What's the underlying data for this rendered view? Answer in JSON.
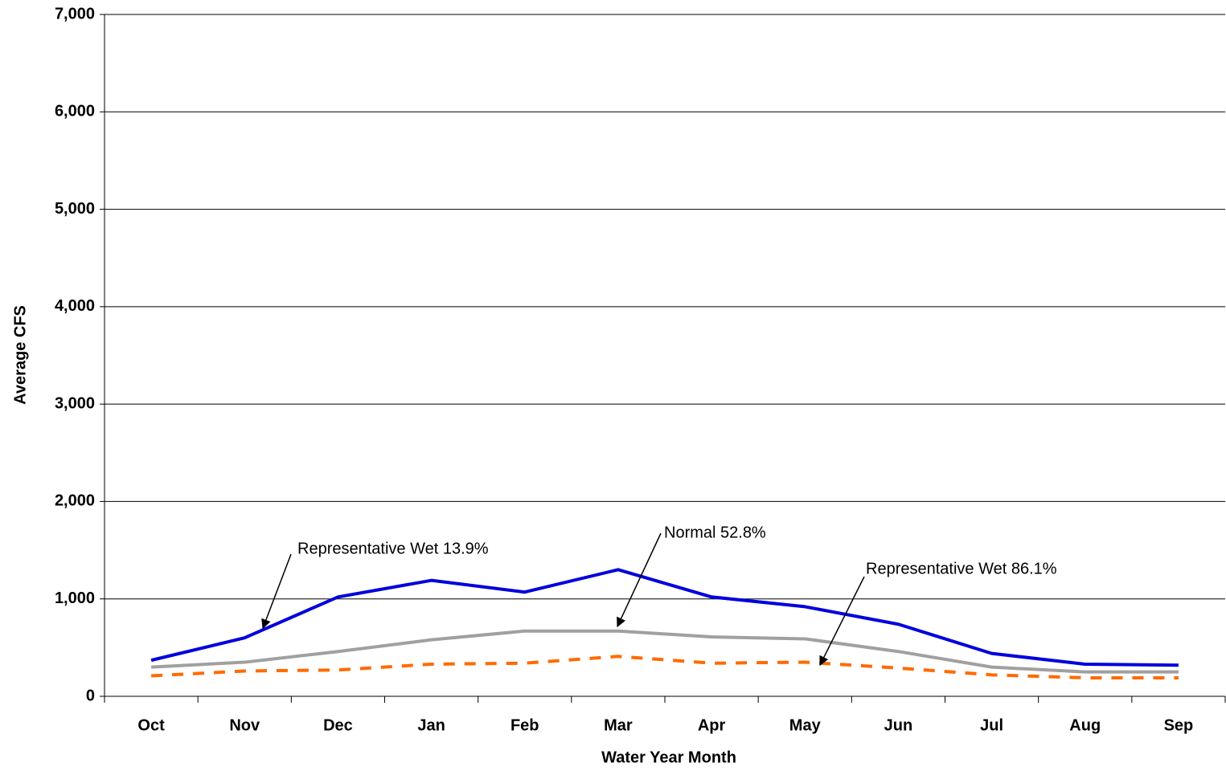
{
  "chart_data": {
    "type": "line",
    "x_label": "Water Year Month",
    "y_label": "Average CFS",
    "categories": [
      "Oct",
      "Nov",
      "Dec",
      "Jan",
      "Feb",
      "Mar",
      "Apr",
      "May",
      "Jun",
      "Jul",
      "Aug",
      "Sep"
    ],
    "series": [
      {
        "name": "Representative Wet 13.9%",
        "color": "#0000dd",
        "dash": false,
        "values": [
          370,
          600,
          1020,
          1190,
          1070,
          1300,
          1020,
          920,
          740,
          440,
          330,
          320
        ]
      },
      {
        "name": "Normal 52.8%",
        "color": "#a0a0a0",
        "dash": false,
        "values": [
          300,
          350,
          460,
          580,
          670,
          670,
          610,
          590,
          460,
          300,
          250,
          250
        ]
      },
      {
        "name": "Representative Wet 86.1%",
        "color": "#ff6a00",
        "dash": true,
        "values": [
          210,
          260,
          270,
          330,
          340,
          410,
          340,
          350,
          290,
          220,
          190,
          190
        ]
      }
    ],
    "ylim": [
      0,
      7000
    ],
    "yticks": [
      0,
      {
        "value": 1000,
        "label": "1,000"
      },
      {
        "value": 2000,
        "label": "2,000"
      },
      {
        "value": 3000,
        "label": "3,000"
      },
      {
        "value": 4000,
        "label": "4,000"
      },
      {
        "value": 5000,
        "label": "5,000"
      },
      {
        "value": 6000,
        "label": "6,000"
      },
      {
        "value": 7000,
        "label": "7,000"
      }
    ],
    "grid": true
  }
}
